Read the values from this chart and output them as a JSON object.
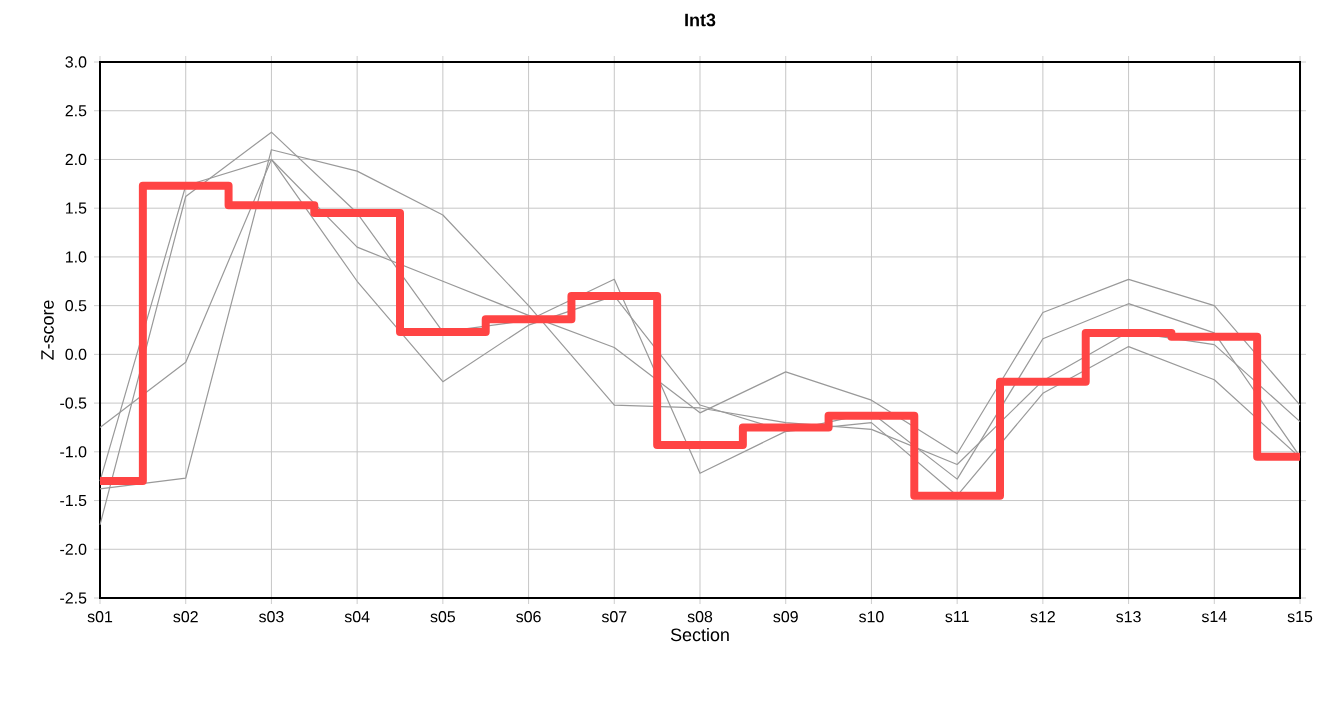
{
  "chart_data": {
    "type": "line",
    "title": "Int3",
    "xlabel": "Section",
    "ylabel": "Z-score",
    "categories": [
      "s01",
      "s02",
      "s03",
      "s04",
      "s05",
      "s06",
      "s07",
      "s08",
      "s09",
      "s10",
      "s11",
      "s12",
      "s13",
      "s14",
      "s15"
    ],
    "ylim": [
      -2.5,
      3.0
    ],
    "yticks": [
      -2.5,
      {
        "value": -2,
        "label": "-2.0"
      },
      -1.5,
      {
        "value": -1,
        "label": "-1.0"
      },
      -0.5,
      {
        "value": 0,
        "label": "0.0"
      },
      0.5,
      {
        "value": 1,
        "label": "1.0"
      },
      1.5,
      {
        "value": 2,
        "label": "2.0"
      },
      2.5,
      {
        "value": 3,
        "label": "3.0"
      }
    ],
    "grid": true,
    "legend": false,
    "series": [
      {
        "color": "#999999",
        "values": [
          -1.75,
          1.62,
          2.28,
          1.45,
          0.23,
          0.35,
          0.77,
          -1.22,
          -0.79,
          -0.6,
          -1.28,
          0.16,
          0.52,
          0.22,
          -1.05
        ]
      },
      {
        "color": "#999999",
        "values": [
          -1.38,
          -1.27,
          2.1,
          1.88,
          1.43,
          0.5,
          -0.52,
          -0.55,
          -0.7,
          -0.77,
          -1.13,
          -0.27,
          0.23,
          0.1,
          -0.69
        ]
      },
      {
        "color": "#999999",
        "values": [
          -0.75,
          -0.08,
          2.0,
          1.1,
          0.75,
          0.4,
          0.07,
          -0.6,
          -0.18,
          -0.47,
          -1.02,
          0.43,
          0.77,
          0.5,
          -0.52
        ]
      },
      {
        "color": "#999999",
        "values": [
          -1.3,
          1.73,
          2.0,
          0.75,
          -0.28,
          0.3,
          0.6,
          -0.52,
          -0.79,
          -0.7,
          -1.45,
          -0.4,
          0.08,
          -0.26,
          -1.06
        ]
      },
      {
        "type": "step",
        "color": "#ff4444",
        "values": [
          -1.3,
          1.73,
          1.53,
          1.45,
          0.23,
          0.36,
          0.6,
          -0.93,
          -0.75,
          -0.63,
          -1.45,
          -0.28,
          0.22,
          0.18,
          -1.05
        ]
      }
    ]
  }
}
